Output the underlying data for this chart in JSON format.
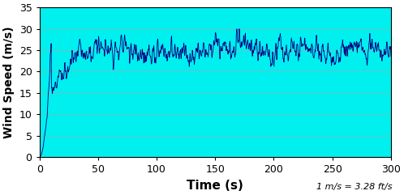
{
  "title": "",
  "xlabel": "Time (s)",
  "ylabel": "Wind Speed (m/s)",
  "annotation": "1 m/s = 3.28 ft/s",
  "xlim": [
    0,
    300
  ],
  "ylim": [
    0,
    35
  ],
  "xticks": [
    0,
    50,
    100,
    150,
    200,
    250,
    300
  ],
  "yticks": [
    0,
    5,
    10,
    15,
    20,
    25,
    30,
    35
  ],
  "line_color": "#000080",
  "axes_facecolor": "#00EFEF",
  "figure_facecolor": "#FFFFFF",
  "grid_color": "#60C8C8",
  "xlabel_fontsize": 11,
  "ylabel_fontsize": 10,
  "annotation_fontsize": 8,
  "tick_fontsize": 9,
  "linewidth": 0.6
}
